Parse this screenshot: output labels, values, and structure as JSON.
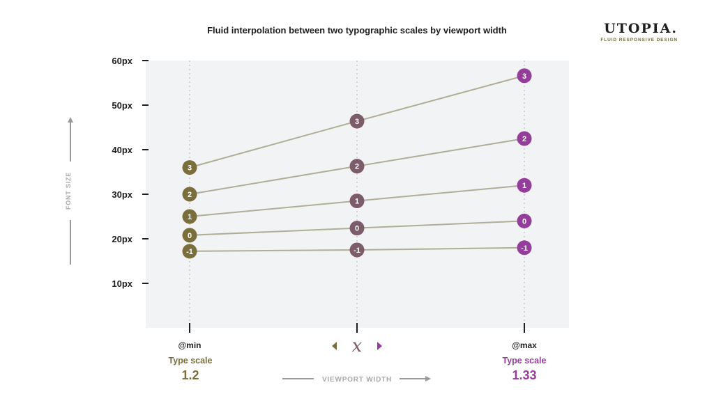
{
  "title": "Fluid interpolation between two typographic scales by viewport width",
  "logo": {
    "word": "UTOPIA.",
    "tagline": "FLUID RESPONSIVE DESIGN"
  },
  "colors": {
    "min": "#7a6e3c",
    "mid": "#7d5c6a",
    "max": "#953d9a",
    "line": "#b0ad98",
    "plot_bg": "#f1f3f4"
  },
  "labels": {
    "y_axis": "FONT SIZE",
    "x_axis": "VIEWPORT WIDTH",
    "min_label": "@min",
    "max_label": "@max",
    "interp_symbol": "x",
    "type_scale_label": "Type scale",
    "min_ratio": "1.2",
    "max_ratio": "1.33"
  },
  "chart_data": {
    "type": "line",
    "title": "Fluid interpolation between two typographic scales by viewport width",
    "xlabel": "VIEWPORT WIDTH",
    "ylabel": "FONT SIZE",
    "x": [
      "@min",
      "x",
      "@max"
    ],
    "yticks": [
      "60px",
      "50px",
      "40px",
      "30px",
      "20px",
      "10px"
    ],
    "ylim": [
      0,
      60
    ],
    "grid": false,
    "series": [
      {
        "name": "3",
        "values": [
          36.0,
          46.4,
          56.6
        ]
      },
      {
        "name": "2",
        "values": [
          30.0,
          36.3,
          42.5
        ]
      },
      {
        "name": "1",
        "values": [
          25.0,
          28.5,
          32.0
        ]
      },
      {
        "name": "0",
        "values": [
          20.8,
          22.4,
          24.0
        ]
      },
      {
        "name": "-1",
        "values": [
          17.2,
          17.5,
          18.0
        ]
      }
    ]
  }
}
